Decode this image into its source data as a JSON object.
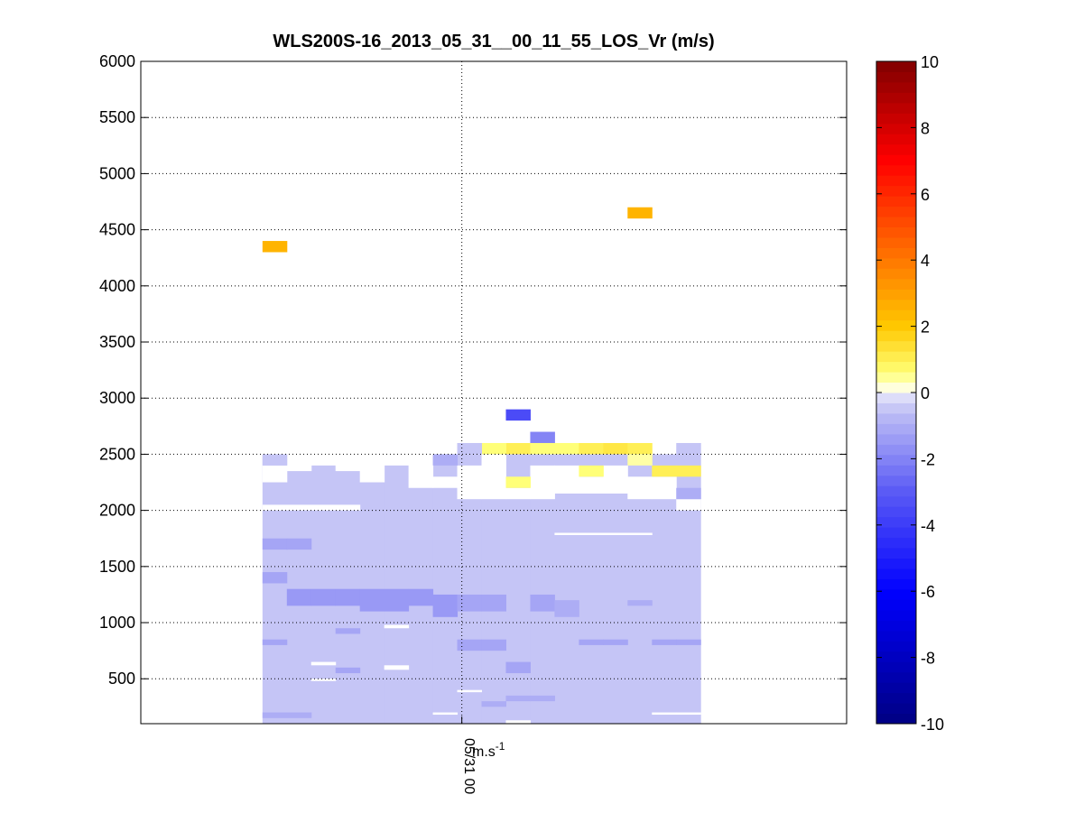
{
  "chart_data": {
    "type": "heatmap",
    "title": "WLS200S-16_2013_05_31__00_11_55_LOS_Vr (m/s)",
    "xlabel": "m.s",
    "xlabel_superscript": "-1",
    "x_tick_label": "05/31 00",
    "ylim": [
      100,
      6000
    ],
    "y_ticks": [
      500,
      1000,
      1500,
      2000,
      2500,
      3000,
      3500,
      4000,
      4500,
      5000,
      5500,
      6000
    ],
    "grid": true,
    "colorbar": {
      "range": [
        -10,
        10
      ],
      "ticks": [
        10,
        8,
        6,
        4,
        2,
        0,
        -2,
        -4,
        -6,
        -8,
        -10
      ],
      "colormap": "blue-white-red"
    },
    "column_count": 29,
    "data_columns": [
      5,
      22
    ],
    "base_value": -0.5,
    "cells": [
      {
        "col": 5,
        "y0": 4300,
        "y1": 4400,
        "v": 2.5
      },
      {
        "col": 20,
        "y0": 4600,
        "y1": 4700,
        "v": 2.5
      },
      {
        "col": 15,
        "y0": 2800,
        "y1": 2900,
        "v": -3.5
      },
      {
        "col": 16,
        "y0": 2600,
        "y1": 2700,
        "v": -2.0
      },
      {
        "col": 15,
        "y0": 2500,
        "y1": 2600,
        "v": 1.0
      },
      {
        "col": 16,
        "y0": 2500,
        "y1": 2600,
        "v": 0.6
      },
      {
        "col": 17,
        "y0": 2500,
        "y1": 2600,
        "v": 0.6
      },
      {
        "col": 18,
        "y0": 2500,
        "y1": 2600,
        "v": 1.0
      },
      {
        "col": 19,
        "y0": 2500,
        "y1": 2600,
        "v": 1.2
      },
      {
        "col": 20,
        "y0": 2500,
        "y1": 2600,
        "v": 1.0
      },
      {
        "col": 14,
        "y0": 2500,
        "y1": 2600,
        "v": 0.6
      },
      {
        "col": 13,
        "y0": 2500,
        "y1": 2600,
        "v": -0.5
      },
      {
        "col": 22,
        "y0": 2500,
        "y1": 2600,
        "v": -0.5
      },
      {
        "col": 12,
        "y0": 2400,
        "y1": 2500,
        "v": -1.0
      },
      {
        "col": 5,
        "y0": 2400,
        "y1": 2500,
        "v": -0.5
      },
      {
        "col": 20,
        "y0": 2400,
        "y1": 2500,
        "v": 0.4
      },
      {
        "col": 21,
        "y0": 2300,
        "y1": 2400,
        "v": 1.0
      },
      {
        "col": 22,
        "y0": 2300,
        "y1": 2400,
        "v": 1.0
      },
      {
        "col": 18,
        "y0": 2300,
        "y1": 2400,
        "v": 0.6
      },
      {
        "col": 15,
        "y0": 2200,
        "y1": 2300,
        "v": 0.6
      },
      {
        "col": 22,
        "y0": 2100,
        "y1": 2200,
        "v": -1.0
      },
      {
        "col": 5,
        "y0": 1650,
        "y1": 1750,
        "v": -1.2
      },
      {
        "col": 6,
        "y0": 1650,
        "y1": 1750,
        "v": -1.2
      },
      {
        "col": 5,
        "y0": 1350,
        "y1": 1450,
        "v": -1.2
      },
      {
        "col": 6,
        "y0": 1150,
        "y1": 1300,
        "v": -1.5
      },
      {
        "col": 7,
        "y0": 1150,
        "y1": 1300,
        "v": -1.5
      },
      {
        "col": 8,
        "y0": 1150,
        "y1": 1300,
        "v": -1.5
      },
      {
        "col": 9,
        "y0": 1100,
        "y1": 1300,
        "v": -1.5
      },
      {
        "col": 10,
        "y0": 1100,
        "y1": 1300,
        "v": -1.5
      },
      {
        "col": 11,
        "y0": 1150,
        "y1": 1300,
        "v": -1.5
      },
      {
        "col": 12,
        "y0": 1050,
        "y1": 1250,
        "v": -1.5
      },
      {
        "col": 13,
        "y0": 1100,
        "y1": 1250,
        "v": -1.2
      },
      {
        "col": 14,
        "y0": 1100,
        "y1": 1250,
        "v": -1.2
      },
      {
        "col": 16,
        "y0": 1100,
        "y1": 1250,
        "v": -1.2
      },
      {
        "col": 17,
        "y0": 1050,
        "y1": 1200,
        "v": -1.0
      },
      {
        "col": 20,
        "y0": 1150,
        "y1": 1200,
        "v": -1.0
      },
      {
        "col": 5,
        "y0": 800,
        "y1": 850,
        "v": -1.2
      },
      {
        "col": 8,
        "y0": 900,
        "y1": 950,
        "v": -1.2
      },
      {
        "col": 13,
        "y0": 750,
        "y1": 850,
        "v": -1.2
      },
      {
        "col": 14,
        "y0": 750,
        "y1": 850,
        "v": -1.2
      },
      {
        "col": 18,
        "y0": 800,
        "y1": 850,
        "v": -1.2
      },
      {
        "col": 19,
        "y0": 800,
        "y1": 850,
        "v": -1.2
      },
      {
        "col": 21,
        "y0": 800,
        "y1": 850,
        "v": -1.2
      },
      {
        "col": 22,
        "y0": 800,
        "y1": 850,
        "v": -1.2
      },
      {
        "col": 8,
        "y0": 550,
        "y1": 600,
        "v": -1.2
      },
      {
        "col": 15,
        "y0": 550,
        "y1": 650,
        "v": -1.2
      },
      {
        "col": 15,
        "y0": 300,
        "y1": 350,
        "v": -1.0
      },
      {
        "col": 16,
        "y0": 300,
        "y1": 350,
        "v": -1.0
      },
      {
        "col": 14,
        "y0": 250,
        "y1": 300,
        "v": -1.0
      },
      {
        "col": 5,
        "y0": 150,
        "y1": 200,
        "v": -1.0
      },
      {
        "col": 6,
        "y0": 150,
        "y1": 200,
        "v": -1.0
      }
    ],
    "gaps": [
      {
        "col": 5,
        "y0": 2250,
        "y1": 2400
      },
      {
        "col": 6,
        "y0": 2350,
        "y1": 2600
      },
      {
        "col": 7,
        "y0": 2400,
        "y1": 2600
      },
      {
        "col": 8,
        "y0": 2350,
        "y1": 2600
      },
      {
        "col": 9,
        "y0": 2250,
        "y1": 2600
      },
      {
        "col": 10,
        "y0": 2400,
        "y1": 2600
      },
      {
        "col": 11,
        "y0": 2200,
        "y1": 2600
      },
      {
        "col": 12,
        "y0": 2200,
        "y1": 2300
      },
      {
        "col": 13,
        "y0": 2100,
        "y1": 2400
      },
      {
        "col": 14,
        "y0": 2100,
        "y1": 2500
      },
      {
        "col": 15,
        "y0": 2100,
        "y1": 2200
      },
      {
        "col": 16,
        "y0": 2100,
        "y1": 2400
      },
      {
        "col": 17,
        "y0": 2150,
        "y1": 2400
      },
      {
        "col": 18,
        "y0": 2150,
        "y1": 2300
      },
      {
        "col": 19,
        "y0": 2150,
        "y1": 2400
      },
      {
        "col": 20,
        "y0": 2100,
        "y1": 2300
      },
      {
        "col": 21,
        "y0": 2100,
        "y1": 2300
      },
      {
        "col": 22,
        "y0": 2000,
        "y1": 2100
      },
      {
        "col": 5,
        "y0": 2000,
        "y1": 2050
      },
      {
        "col": 6,
        "y0": 2000,
        "y1": 2050
      },
      {
        "col": 7,
        "y0": 2000,
        "y1": 2050
      },
      {
        "col": 8,
        "y0": 2000,
        "y1": 2050
      },
      {
        "col": 17,
        "y0": 1780,
        "y1": 1800
      },
      {
        "col": 18,
        "y0": 1780,
        "y1": 1800
      },
      {
        "col": 19,
        "y0": 1780,
        "y1": 1800
      },
      {
        "col": 20,
        "y0": 1780,
        "y1": 1800
      },
      {
        "col": 10,
        "y0": 950,
        "y1": 980
      },
      {
        "col": 7,
        "y0": 620,
        "y1": 650
      },
      {
        "col": 10,
        "y0": 580,
        "y1": 620
      },
      {
        "col": 7,
        "y0": 480,
        "y1": 500
      },
      {
        "col": 13,
        "y0": 380,
        "y1": 400
      },
      {
        "col": 12,
        "y0": 180,
        "y1": 200
      },
      {
        "col": 15,
        "y0": 100,
        "y1": 130
      },
      {
        "col": 21,
        "y0": 180,
        "y1": 200
      },
      {
        "col": 22,
        "y0": 180,
        "y1": 200
      }
    ]
  }
}
